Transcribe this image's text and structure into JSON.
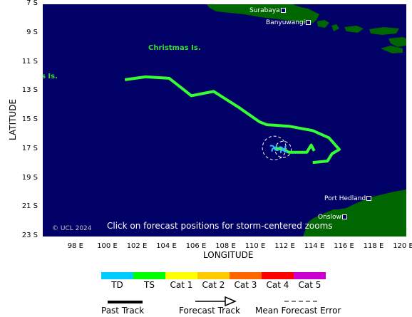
{
  "axes": {
    "xlabel": "LONGITUDE",
    "ylabel": "LATITUDE",
    "lon_ticks": [
      "98 E",
      "100 E",
      "102 E",
      "104 E",
      "106 E",
      "108 E",
      "110 E",
      "112 E",
      "114 E",
      "116 E",
      "118 E",
      "120 E"
    ],
    "lat_ticks": [
      "7 S",
      "9 S",
      "11 S",
      "13 S",
      "15 S",
      "17 S",
      "19 S",
      "21 S",
      "23 S"
    ]
  },
  "places": {
    "surabaya": "Surabaya",
    "banyuwangi": "Banyuwangi",
    "christmas": "Christmas Is.",
    "cocos": "s Is.",
    "port_hedland": "Port Hedland",
    "onslow": "Onslow"
  },
  "copyright": "© UCL 2024",
  "click_note": "Click on forecast positions for storm-centered zooms",
  "legend": {
    "categories": [
      {
        "label": "TD",
        "color": "#00ccff"
      },
      {
        "label": "TS",
        "color": "#00ff00"
      },
      {
        "label": "Cat 1",
        "color": "#ffff00"
      },
      {
        "label": "Cat 2",
        "color": "#ffcc00"
      },
      {
        "label": "Cat 3",
        "color": "#ff6600"
      },
      {
        "label": "Cat 4",
        "color": "#ff0000"
      },
      {
        "label": "Cat 5",
        "color": "#cc00cc"
      }
    ],
    "past_track": "Past Track",
    "forecast_track": "Forecast Track",
    "mean_error": "Mean Forecast Error"
  },
  "colors": {
    "ocean": "#000066",
    "land": "#006600",
    "track": "#33ff33",
    "storm_icon": "#33bbff"
  },
  "track": [
    {
      "lon": 101.3,
      "lat": 12.2
    },
    {
      "lon": 102.7,
      "lat": 12.0
    },
    {
      "lon": 104.3,
      "lat": 12.1
    },
    {
      "lon": 105.8,
      "lat": 13.3
    },
    {
      "lon": 107.3,
      "lat": 13.0
    },
    {
      "lon": 109.0,
      "lat": 14.1
    },
    {
      "lon": 110.4,
      "lat": 15.1
    },
    {
      "lon": 110.9,
      "lat": 15.3
    },
    {
      "lon": 112.4,
      "lat": 15.4
    },
    {
      "lon": 114.0,
      "lat": 15.7
    },
    {
      "lon": 115.1,
      "lat": 16.2
    },
    {
      "lon": 115.8,
      "lat": 17.0
    },
    {
      "lon": 115.3,
      "lat": 17.3
    },
    {
      "lon": 115.0,
      "lat": 17.8
    },
    {
      "lon": 114.0,
      "lat": 17.9
    }
  ],
  "forecast": [
    {
      "lon": 114.1,
      "lat": 17.1
    },
    {
      "lon": 113.9,
      "lat": 16.7
    },
    {
      "lon": 113.6,
      "lat": 17.2
    },
    {
      "lon": 112.4,
      "lat": 17.2
    },
    {
      "lon": 112.0,
      "lat": 17.0
    },
    {
      "lon": 111.4,
      "lat": 16.9
    }
  ],
  "error_circles": [
    {
      "lon": 111.4,
      "lat": 16.9,
      "radius_deg": 0.8
    },
    {
      "lon": 112.0,
      "lat": 17.0,
      "radius_deg": 0.55
    }
  ],
  "storm_positions": [
    {
      "lon": 111.4,
      "lat": 16.9
    },
    {
      "lon": 112.0,
      "lat": 17.0
    }
  ]
}
